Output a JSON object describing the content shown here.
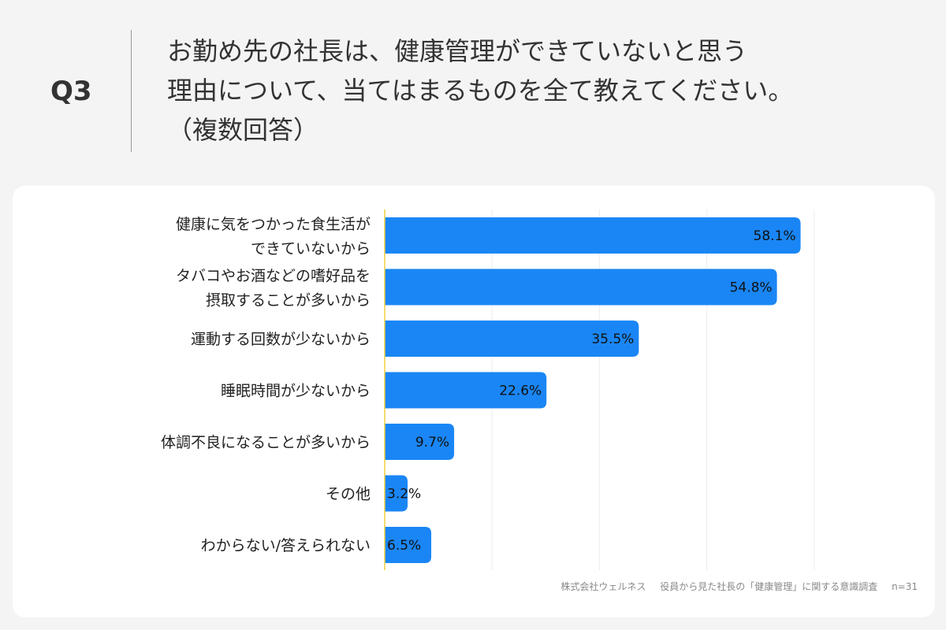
{
  "header": {
    "qnum": "Q3",
    "question_lines": [
      "お勤め先の社長は、健康管理ができていないと思う",
      "理由について、当てはまるものを全て教えてください。",
      "（複数回答）"
    ]
  },
  "chart_data": {
    "type": "bar",
    "orientation": "horizontal",
    "categories": [
      [
        "健康に気をつかった食生活が",
        "できていないから"
      ],
      [
        "タバコやお酒などの嗜好品を",
        "摂取することが多いから"
      ],
      [
        "運動する回数が少ないから"
      ],
      [
        "睡眠時間が少ないから"
      ],
      [
        "体調不良になることが多いから"
      ],
      [
        "その他"
      ],
      [
        "わからない/答えられない"
      ]
    ],
    "values": [
      58.1,
      54.8,
      35.5,
      22.6,
      9.7,
      3.2,
      6.5
    ],
    "value_labels": [
      "58.1%",
      "54.8%",
      "35.5%",
      "22.6%",
      "9.7%",
      "3.2%",
      "6.5%"
    ],
    "xlim": [
      0,
      60
    ],
    "grid": true,
    "bar_color": "#1a86f5"
  },
  "footnote": {
    "company": "株式会社ウェルネス",
    "survey": "役員から見た社長の「健康管理」に関する意識調査",
    "n": "n=31"
  }
}
